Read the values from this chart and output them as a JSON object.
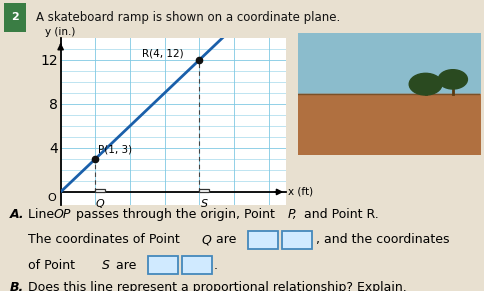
{
  "title": "A skateboard ramp is shown on a coordinate plane.",
  "problem_number": "2",
  "badge_color": "#3a7d44",
  "bg_color": "#e8e0d0",
  "graph": {
    "xlim": [
      0,
      6.5
    ],
    "ylim": [
      -1.2,
      14
    ],
    "ylim_data": [
      0,
      14
    ],
    "xticks": [
      1,
      2,
      3,
      4,
      5,
      6
    ],
    "yticks": [
      4,
      8,
      12
    ],
    "xlabel": "x (ft)",
    "ylabel": "y (in.)",
    "grid_color": "#7ec8e3",
    "line_color": "#1a5faa",
    "line_x_start": 0,
    "line_x_end": 5.6,
    "slope": 3,
    "point_P": [
      1,
      3
    ],
    "point_R": [
      4,
      12
    ],
    "point_Q_x": 1,
    "point_S_x": 4,
    "dot_color": "#111111",
    "sq_color": "white",
    "sq_edge": "#333333",
    "sq_size": 0.28
  },
  "text_fontsize": 9.0,
  "bold_B": true,
  "box_fill": "#d0eaff",
  "box_edge": "#4488bb",
  "photo_sky": "#8bbccc",
  "photo_ground": "#b07040",
  "photo_tree1": "#2a4a20",
  "photo_tree2": "#3a6030"
}
